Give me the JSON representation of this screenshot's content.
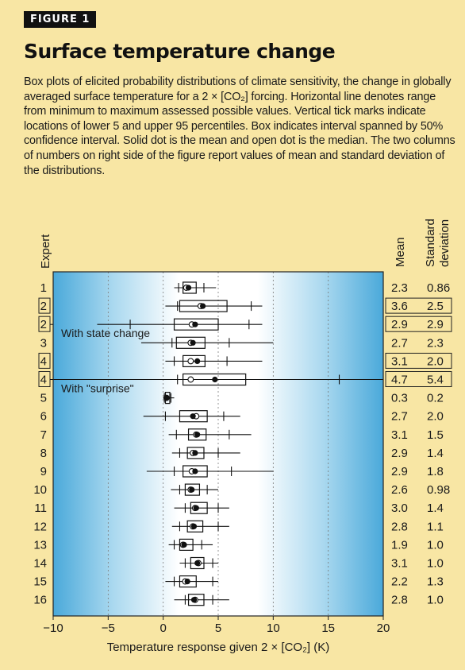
{
  "figure_label": "FIGURE 1",
  "title": "Surface temperature change",
  "caption": "Box plots of elicited probability distributions of climate sensitivity, the change in globally averaged surface temperature for a 2 × [CO₂] forcing. Horizontal line denotes range from minimum to maximum assessed possible values. Vertical tick marks indicate locations of lower 5 and upper 95 percentiles. Box indicates interval spanned by 50% confidence interval. Solid dot is the mean and open dot is the median. The two columns of numbers on right side of the figure report values of mean and standard deviation of the distributions.",
  "colors": {
    "background": "#f8e6a4",
    "plot_gradient_light": "#ffffff",
    "plot_gradient_blue": "#5fb7e0"
  },
  "chart_data": {
    "type": "boxplot",
    "xlabel": "Temperature response given 2 × [CO₂] (K)",
    "ylabel": "Expert",
    "xlim": [
      -10,
      20
    ],
    "xticks": [
      "−10",
      "−5",
      "0",
      "5",
      "10",
      "15",
      "20"
    ],
    "col_headers": {
      "mean": "Mean",
      "sd": "Standard deviation",
      "sd_line1": "Standard",
      "sd_line2": "deviation"
    },
    "annotations": [
      "With state change",
      "With \"surprise\""
    ],
    "rows": [
      {
        "expert": "1",
        "boxed": false,
        "annotation": "",
        "min": 1.0,
        "p5": 1.4,
        "q1": 1.8,
        "q3": 3.0,
        "p95": 3.7,
        "max": 4.8,
        "mean": 2.3,
        "median": 2.1,
        "mean_label": "2.3",
        "sd_label": "0.86"
      },
      {
        "expert": "2",
        "boxed": true,
        "annotation": "",
        "min": 0.2,
        "p5": 1.3,
        "q1": 1.5,
        "q3": 5.8,
        "p95": 8.0,
        "max": 9.0,
        "mean": 3.6,
        "median": 3.4,
        "mean_label": "3.6",
        "sd_label": "2.5"
      },
      {
        "expert": "2",
        "boxed": true,
        "annotation": "With state change",
        "min": -6.0,
        "p5": -3.0,
        "q1": 1.0,
        "q3": 5.0,
        "p95": 7.8,
        "max": 9.0,
        "mean": 2.9,
        "median": 2.6,
        "mean_label": "2.9",
        "sd_label": "2.9"
      },
      {
        "expert": "3",
        "boxed": false,
        "annotation": "",
        "min": -2.0,
        "p5": 0.8,
        "q1": 1.2,
        "q3": 3.8,
        "p95": 6.0,
        "max": 10.0,
        "mean": 2.7,
        "median": 2.5,
        "mean_label": "2.7",
        "sd_label": "2.3"
      },
      {
        "expert": "4",
        "boxed": true,
        "annotation": "",
        "min": 0.2,
        "p5": 1.0,
        "q1": 1.8,
        "q3": 3.8,
        "p95": 5.8,
        "max": 9.0,
        "mean": 3.1,
        "median": 2.5,
        "mean_label": "3.1",
        "sd_label": "2.0"
      },
      {
        "expert": "4",
        "boxed": true,
        "annotation": "With \"surprise\"",
        "min": -10.0,
        "p5": 1.3,
        "q1": 1.8,
        "q3": 7.5,
        "p95": 16.0,
        "max": 20.0,
        "mean": 4.7,
        "median": 2.5,
        "mean_label": "4.7",
        "sd_label": "5.4"
      },
      {
        "expert": "5",
        "boxed": false,
        "annotation": "",
        "min": 0.0,
        "p5": 0.1,
        "q1": 0.2,
        "q3": 0.6,
        "p95": 0.7,
        "max": 1.0,
        "mean": 0.3,
        "median": 0.3,
        "mean_label": "0.3",
        "sd_label": "0.2"
      },
      {
        "expert": "6",
        "boxed": false,
        "annotation": "",
        "min": -1.8,
        "p5": 0.2,
        "q1": 1.5,
        "q3": 4.0,
        "p95": 5.5,
        "max": 7.0,
        "mean": 2.7,
        "median": 3.0,
        "mean_label": "2.7",
        "sd_label": "2.0"
      },
      {
        "expert": "7",
        "boxed": false,
        "annotation": "",
        "min": 0.5,
        "p5": 1.2,
        "q1": 2.3,
        "q3": 3.9,
        "p95": 6.0,
        "max": 8.0,
        "mean": 3.1,
        "median": 3.0,
        "mean_label": "3.1",
        "sd_label": "1.5"
      },
      {
        "expert": "8",
        "boxed": false,
        "annotation": "",
        "min": 0.8,
        "p5": 1.5,
        "q1": 2.2,
        "q3": 3.7,
        "p95": 5.0,
        "max": 7.0,
        "mean": 2.9,
        "median": 2.7,
        "mean_label": "2.9",
        "sd_label": "1.4"
      },
      {
        "expert": "9",
        "boxed": false,
        "annotation": "",
        "min": -1.5,
        "p5": 1.0,
        "q1": 1.8,
        "q3": 4.0,
        "p95": 6.2,
        "max": 10.0,
        "mean": 2.9,
        "median": 2.6,
        "mean_label": "2.9",
        "sd_label": "1.8"
      },
      {
        "expert": "10",
        "boxed": false,
        "annotation": "",
        "min": 0.7,
        "p5": 1.5,
        "q1": 2.0,
        "q3": 3.3,
        "p95": 4.0,
        "max": 5.0,
        "mean": 2.6,
        "median": 2.5,
        "mean_label": "2.6",
        "sd_label": "0.98"
      },
      {
        "expert": "11",
        "boxed": false,
        "annotation": "",
        "min": 1.0,
        "p5": 2.0,
        "q1": 2.5,
        "q3": 4.0,
        "p95": 5.0,
        "max": 6.0,
        "mean": 3.0,
        "median": 2.9,
        "mean_label": "3.0",
        "sd_label": "1.4"
      },
      {
        "expert": "12",
        "boxed": false,
        "annotation": "",
        "min": 0.8,
        "p5": 1.5,
        "q1": 2.2,
        "q3": 3.6,
        "p95": 5.0,
        "max": 6.0,
        "mean": 2.8,
        "median": 2.7,
        "mean_label": "2.8",
        "sd_label": "1.1"
      },
      {
        "expert": "13",
        "boxed": false,
        "annotation": "",
        "min": 0.5,
        "p5": 1.0,
        "q1": 1.5,
        "q3": 2.7,
        "p95": 3.5,
        "max": 4.5,
        "mean": 1.9,
        "median": 1.8,
        "mean_label": "1.9",
        "sd_label": "1.0"
      },
      {
        "expert": "14",
        "boxed": false,
        "annotation": "",
        "min": 1.5,
        "p5": 2.0,
        "q1": 2.5,
        "q3": 3.7,
        "p95": 4.5,
        "max": 5.0,
        "mean": 3.1,
        "median": 3.2,
        "mean_label": "3.1",
        "sd_label": "1.0"
      },
      {
        "expert": "15",
        "boxed": false,
        "annotation": "",
        "min": 0.2,
        "p5": 1.0,
        "q1": 1.5,
        "q3": 3.0,
        "p95": 4.5,
        "max": 5.0,
        "mean": 2.2,
        "median": 2.0,
        "mean_label": "2.2",
        "sd_label": "1.3"
      },
      {
        "expert": "16",
        "boxed": false,
        "annotation": "",
        "min": 1.0,
        "p5": 2.0,
        "q1": 2.3,
        "q3": 3.7,
        "p95": 4.5,
        "max": 6.0,
        "mean": 2.8,
        "median": 2.9,
        "mean_label": "2.8",
        "sd_label": "1.0"
      }
    ],
    "boxed_groups": [
      [
        1,
        2
      ],
      [
        4,
        5
      ]
    ],
    "grid": {
      "vertical_dashed": true
    }
  }
}
